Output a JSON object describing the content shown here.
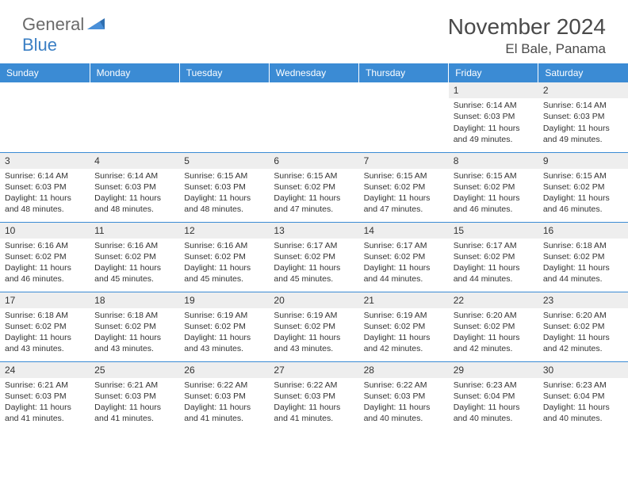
{
  "logo": {
    "word1": "General",
    "word2": "Blue"
  },
  "title": "November 2024",
  "location": "El Bale, Panama",
  "header_bg": "#3b8bd4",
  "dayNames": [
    "Sunday",
    "Monday",
    "Tuesday",
    "Wednesday",
    "Thursday",
    "Friday",
    "Saturday"
  ],
  "colors": {
    "header_bg": "#3b8bd4",
    "header_text": "#ffffff",
    "daynum_bg": "#eeeeee",
    "body_text": "#333333",
    "rule": "#3b8bd4",
    "logo_gray": "#6a6a6a",
    "logo_blue": "#3b7fc4"
  },
  "weeks": [
    [
      {
        "n": "",
        "sr": "",
        "ss": "",
        "dl": ""
      },
      {
        "n": "",
        "sr": "",
        "ss": "",
        "dl": ""
      },
      {
        "n": "",
        "sr": "",
        "ss": "",
        "dl": ""
      },
      {
        "n": "",
        "sr": "",
        "ss": "",
        "dl": ""
      },
      {
        "n": "",
        "sr": "",
        "ss": "",
        "dl": ""
      },
      {
        "n": "1",
        "sr": "Sunrise: 6:14 AM",
        "ss": "Sunset: 6:03 PM",
        "dl": "Daylight: 11 hours and 49 minutes."
      },
      {
        "n": "2",
        "sr": "Sunrise: 6:14 AM",
        "ss": "Sunset: 6:03 PM",
        "dl": "Daylight: 11 hours and 49 minutes."
      }
    ],
    [
      {
        "n": "3",
        "sr": "Sunrise: 6:14 AM",
        "ss": "Sunset: 6:03 PM",
        "dl": "Daylight: 11 hours and 48 minutes."
      },
      {
        "n": "4",
        "sr": "Sunrise: 6:14 AM",
        "ss": "Sunset: 6:03 PM",
        "dl": "Daylight: 11 hours and 48 minutes."
      },
      {
        "n": "5",
        "sr": "Sunrise: 6:15 AM",
        "ss": "Sunset: 6:03 PM",
        "dl": "Daylight: 11 hours and 48 minutes."
      },
      {
        "n": "6",
        "sr": "Sunrise: 6:15 AM",
        "ss": "Sunset: 6:02 PM",
        "dl": "Daylight: 11 hours and 47 minutes."
      },
      {
        "n": "7",
        "sr": "Sunrise: 6:15 AM",
        "ss": "Sunset: 6:02 PM",
        "dl": "Daylight: 11 hours and 47 minutes."
      },
      {
        "n": "8",
        "sr": "Sunrise: 6:15 AM",
        "ss": "Sunset: 6:02 PM",
        "dl": "Daylight: 11 hours and 46 minutes."
      },
      {
        "n": "9",
        "sr": "Sunrise: 6:15 AM",
        "ss": "Sunset: 6:02 PM",
        "dl": "Daylight: 11 hours and 46 minutes."
      }
    ],
    [
      {
        "n": "10",
        "sr": "Sunrise: 6:16 AM",
        "ss": "Sunset: 6:02 PM",
        "dl": "Daylight: 11 hours and 46 minutes."
      },
      {
        "n": "11",
        "sr": "Sunrise: 6:16 AM",
        "ss": "Sunset: 6:02 PM",
        "dl": "Daylight: 11 hours and 45 minutes."
      },
      {
        "n": "12",
        "sr": "Sunrise: 6:16 AM",
        "ss": "Sunset: 6:02 PM",
        "dl": "Daylight: 11 hours and 45 minutes."
      },
      {
        "n": "13",
        "sr": "Sunrise: 6:17 AM",
        "ss": "Sunset: 6:02 PM",
        "dl": "Daylight: 11 hours and 45 minutes."
      },
      {
        "n": "14",
        "sr": "Sunrise: 6:17 AM",
        "ss": "Sunset: 6:02 PM",
        "dl": "Daylight: 11 hours and 44 minutes."
      },
      {
        "n": "15",
        "sr": "Sunrise: 6:17 AM",
        "ss": "Sunset: 6:02 PM",
        "dl": "Daylight: 11 hours and 44 minutes."
      },
      {
        "n": "16",
        "sr": "Sunrise: 6:18 AM",
        "ss": "Sunset: 6:02 PM",
        "dl": "Daylight: 11 hours and 44 minutes."
      }
    ],
    [
      {
        "n": "17",
        "sr": "Sunrise: 6:18 AM",
        "ss": "Sunset: 6:02 PM",
        "dl": "Daylight: 11 hours and 43 minutes."
      },
      {
        "n": "18",
        "sr": "Sunrise: 6:18 AM",
        "ss": "Sunset: 6:02 PM",
        "dl": "Daylight: 11 hours and 43 minutes."
      },
      {
        "n": "19",
        "sr": "Sunrise: 6:19 AM",
        "ss": "Sunset: 6:02 PM",
        "dl": "Daylight: 11 hours and 43 minutes."
      },
      {
        "n": "20",
        "sr": "Sunrise: 6:19 AM",
        "ss": "Sunset: 6:02 PM",
        "dl": "Daylight: 11 hours and 43 minutes."
      },
      {
        "n": "21",
        "sr": "Sunrise: 6:19 AM",
        "ss": "Sunset: 6:02 PM",
        "dl": "Daylight: 11 hours and 42 minutes."
      },
      {
        "n": "22",
        "sr": "Sunrise: 6:20 AM",
        "ss": "Sunset: 6:02 PM",
        "dl": "Daylight: 11 hours and 42 minutes."
      },
      {
        "n": "23",
        "sr": "Sunrise: 6:20 AM",
        "ss": "Sunset: 6:02 PM",
        "dl": "Daylight: 11 hours and 42 minutes."
      }
    ],
    [
      {
        "n": "24",
        "sr": "Sunrise: 6:21 AM",
        "ss": "Sunset: 6:03 PM",
        "dl": "Daylight: 11 hours and 41 minutes."
      },
      {
        "n": "25",
        "sr": "Sunrise: 6:21 AM",
        "ss": "Sunset: 6:03 PM",
        "dl": "Daylight: 11 hours and 41 minutes."
      },
      {
        "n": "26",
        "sr": "Sunrise: 6:22 AM",
        "ss": "Sunset: 6:03 PM",
        "dl": "Daylight: 11 hours and 41 minutes."
      },
      {
        "n": "27",
        "sr": "Sunrise: 6:22 AM",
        "ss": "Sunset: 6:03 PM",
        "dl": "Daylight: 11 hours and 41 minutes."
      },
      {
        "n": "28",
        "sr": "Sunrise: 6:22 AM",
        "ss": "Sunset: 6:03 PM",
        "dl": "Daylight: 11 hours and 40 minutes."
      },
      {
        "n": "29",
        "sr": "Sunrise: 6:23 AM",
        "ss": "Sunset: 6:04 PM",
        "dl": "Daylight: 11 hours and 40 minutes."
      },
      {
        "n": "30",
        "sr": "Sunrise: 6:23 AM",
        "ss": "Sunset: 6:04 PM",
        "dl": "Daylight: 11 hours and 40 minutes."
      }
    ]
  ]
}
